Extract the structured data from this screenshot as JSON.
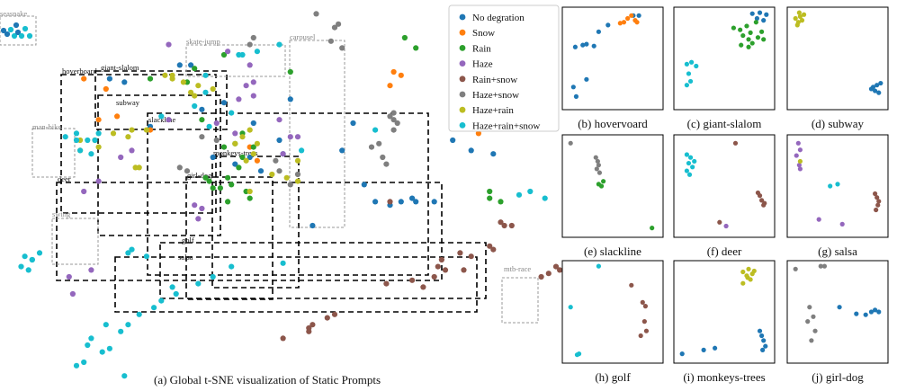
{
  "categories": [
    {
      "name": "No degration",
      "color": "#1f77b4"
    },
    {
      "name": "Snow",
      "color": "#ff7f0e"
    },
    {
      "name": "Rain",
      "color": "#2ca02c"
    },
    {
      "name": "Haze",
      "color": "#9467bd"
    },
    {
      "name": "Rain+snow",
      "color": "#8c564b"
    },
    {
      "name": "Haze+snow",
      "color": "#7f7f7f"
    },
    {
      "name": "Haze+rain",
      "color": "#bcbd22"
    },
    {
      "name": "Haze+rain+snow",
      "color": "#17becf"
    }
  ],
  "main": {
    "caption": "(a) Global t-SNE visualization of Static Prompts",
    "black_boxes": [
      "hoverboard",
      "giant-slalom",
      "subway",
      "slackline",
      "monkeys-trees",
      "girl-dog",
      "deer",
      "golf",
      "salsa"
    ],
    "gray_boxes": [
      "seasnake",
      "skate-jump",
      "carousel",
      "man-bike",
      "swing",
      "mtb-race"
    ]
  },
  "chart_data": [
    {
      "type": "scatter",
      "title": "(a) Global t-SNE visualization of Static Prompts",
      "series": [
        {
          "name": "No degration",
          "x": [
            5,
            -3,
            -19,
            -22,
            -7,
            -13,
            -37,
            -41,
            -30,
            -16,
            -10,
            -2,
            6,
            0,
            8,
            14,
            25,
            28,
            31,
            22,
            35,
            38,
            42,
            47,
            41,
            52,
            57,
            58,
            63
          ],
          "y": [
            30,
            25,
            52,
            52,
            23,
            25,
            47,
            48,
            34,
            39,
            41,
            35,
            26,
            21,
            42,
            5,
            35,
            17,
            12,
            27,
            11,
            12,
            12,
            12,
            13,
            30,
            27,
            35,
            26
          ]
        },
        {
          "name": "Snow",
          "x": [
            -39,
            -44,
            -48,
            -42,
            -30,
            -1,
            -3,
            35,
            36,
            38,
            55,
            55,
            58,
            59
          ],
          "y": [
            37,
            36,
            48,
            45,
            33,
            24,
            28,
            46,
            50,
            49,
            36,
            41,
            40,
            32
          ]
        },
        {
          "name": "Rain",
          "x": [
            -30,
            -11,
            -13,
            -14,
            -15,
            -4,
            -3,
            -9,
            -8,
            -9,
            -6,
            -10,
            -5,
            -2,
            -7,
            -5,
            -10,
            -20,
            -18,
            -16,
            8,
            39,
            42,
            62,
            62,
            65
          ],
          "y": [
            48,
            16,
            16,
            18,
            19,
            15,
            13,
            12,
            17,
            19,
            22,
            28,
            25,
            28,
            29,
            32,
            55,
            47,
            51,
            36,
            50,
            60,
            57,
            13,
            15,
            12
          ]
        },
        {
          "name": "Haze",
          "x": [
            -25,
            -9,
            -3,
            -2,
            -6,
            -7,
            -2,
            -4,
            8,
            10,
            5,
            6,
            -12,
            -25,
            -35,
            -38,
            -44,
            -48,
            -51,
            -52,
            -46,
            -16,
            -18,
            -17
          ],
          "y": [
            58,
            56,
            52,
            47,
            42,
            32,
            43,
            46,
            31,
            31,
            36,
            26,
            35,
            36,
            27,
            25,
            18,
            15,
            -15,
            -10,
            -8,
            10,
            11,
            7
          ]
        },
        {
          "name": "Rain+snow",
          "x": [
            6,
            13,
            13,
            14,
            18,
            20,
            34,
            35,
            41,
            44,
            47,
            48,
            49,
            50,
            54,
            55,
            57,
            62,
            63,
            65,
            66,
            68,
            76,
            78,
            80,
            81
          ],
          "y": [
            -28,
            -26,
            -25,
            -24,
            -22,
            -21,
            -12,
            12,
            -11,
            -13,
            -10,
            -7,
            -5,
            -8,
            -3,
            -8,
            -4,
            -1,
            -2,
            6,
            5,
            5,
            -10,
            -9,
            -7,
            -8
          ]
        },
        {
          "name": "Haze+snow",
          "x": [
            -3,
            -2,
            -3,
            15,
            20,
            21,
            19,
            22,
            35,
            36,
            36,
            37,
            36,
            5,
            4,
            10,
            8,
            -12,
            -16,
            -20,
            -22,
            30,
            32,
            33,
            34
          ],
          "y": [
            72,
            60,
            58,
            67,
            63,
            64,
            59,
            57,
            37,
            36,
            33,
            35,
            38,
            21,
            24,
            20,
            17,
            30,
            31,
            21,
            22,
            28,
            29,
            25,
            23
          ]
        },
        {
          "name": "Haze+rain",
          "x": [
            -26,
            -24,
            -21,
            -17,
            -13,
            -19,
            -18,
            -7,
            -5,
            -3,
            -1,
            -2,
            -4,
            -3,
            3,
            7,
            10,
            10,
            -24,
            -31,
            -35,
            -40,
            -44,
            -49,
            -45,
            -49,
            -34,
            -33,
            -36
          ],
          "y": [
            49,
            49,
            47,
            46,
            45,
            44,
            43,
            29,
            31,
            33,
            29,
            26,
            24,
            15,
            20,
            19,
            18,
            24,
            48,
            33,
            33,
            32,
            28,
            27,
            30,
            30,
            22,
            22,
            31
          ]
        },
        {
          "name": "Haze+rain+snow",
          "x": [
            -6,
            -5,
            -1,
            5,
            -15,
            -15,
            -8,
            -14,
            -18,
            -27,
            -44,
            -47,
            -50,
            -53,
            -45,
            -50,
            -49,
            -46,
            -60,
            -62,
            -63,
            -65,
            -62,
            -64,
            -36,
            -35,
            -31,
            6,
            -8,
            -13,
            -17,
            -24,
            -23,
            -27,
            -29,
            -33,
            -36,
            -38,
            -46,
            -42,
            -47,
            -43,
            -41,
            -48,
            -50,
            -37,
            70,
            73,
            77,
            31,
            11
          ],
          "y": [
            55,
            55,
            56,
            58,
            49,
            44,
            38,
            34,
            40,
            37,
            32,
            30,
            30,
            31,
            30,
            32,
            27,
            26,
            -3,
            -5,
            -8,
            -7,
            -5,
            -4,
            -3,
            -2,
            -4,
            -6,
            -7,
            -10,
            -12,
            -13,
            -15,
            -17,
            -19,
            -21,
            -24,
            -26,
            -28,
            -24,
            -30,
            -32,
            -31,
            -35,
            -36,
            -39,
            14,
            15,
            13,
            33,
            27
          ]
        }
      ]
    },
    {
      "type": "scatter",
      "title": "(b) hovervoard",
      "series": [
        {
          "name": "No degration",
          "x": [
            0.1,
            0.18,
            0.22,
            0.3,
            0.08,
            0.11,
            0.22,
            0.35,
            0.45,
            0.72,
            0.78
          ],
          "y": [
            0.62,
            0.64,
            0.65,
            0.63,
            0.2,
            0.1,
            0.28,
            0.78,
            0.85,
            0.95,
            0.95
          ]
        },
        {
          "name": "Snow",
          "x": [
            0.58,
            0.62,
            0.66,
            0.7,
            0.74,
            0.76
          ],
          "y": [
            0.87,
            0.88,
            0.92,
            0.95,
            0.9,
            0.88
          ]
        }
      ]
    },
    {
      "type": "scatter",
      "title": "(c) giant-slalom",
      "series": [
        {
          "name": "No degration",
          "x": [
            0.8,
            0.88,
            0.95,
            0.92,
            0.85
          ],
          "y": [
            0.97,
            0.98,
            0.96,
            0.9,
            0.92
          ]
        },
        {
          "name": "Rain",
          "x": [
            0.6,
            0.67,
            0.74,
            0.7,
            0.76,
            0.8,
            0.86,
            0.9,
            0.84,
            0.76,
            0.68,
            0.78,
            0.92
          ],
          "y": [
            0.82,
            0.8,
            0.84,
            0.74,
            0.7,
            0.66,
            0.72,
            0.78,
            0.88,
            0.62,
            0.64,
            0.77,
            0.7
          ]
        },
        {
          "name": "Haze+rain+snow",
          "x": [
            0.1,
            0.15,
            0.2,
            0.12,
            0.14,
            0.1
          ],
          "y": [
            0.44,
            0.46,
            0.42,
            0.34,
            0.26,
            0.22
          ]
        }
      ]
    },
    {
      "type": "scatter",
      "title": "(d) subway",
      "series": [
        {
          "name": "Haze+rain",
          "x": [
            0.05,
            0.08,
            0.12,
            0.1,
            0.14,
            0.07,
            0.09
          ],
          "y": [
            0.92,
            0.88,
            0.9,
            0.94,
            0.96,
            0.85,
            0.98
          ]
        },
        {
          "name": "No degration",
          "x": [
            0.86,
            0.9,
            0.94,
            0.92,
            0.96,
            0.88
          ],
          "y": [
            0.18,
            0.16,
            0.14,
            0.22,
            0.24,
            0.2
          ]
        }
      ]
    },
    {
      "type": "scatter",
      "title": "(e) slackline",
      "series": [
        {
          "name": "Haze+snow",
          "x": [
            0.05,
            0.32,
            0.34,
            0.35,
            0.33,
            0.36
          ],
          "y": [
            0.95,
            0.8,
            0.76,
            0.72,
            0.68,
            0.64
          ]
        },
        {
          "name": "Rain",
          "x": [
            0.35,
            0.38,
            0.4,
            0.92
          ],
          "y": [
            0.52,
            0.5,
            0.55,
            0.06
          ]
        }
      ]
    },
    {
      "type": "scatter",
      "title": "(f) deer",
      "series": [
        {
          "name": "Haze+rain+snow",
          "x": [
            0.1,
            0.14,
            0.12,
            0.16,
            0.1,
            0.18,
            0.13
          ],
          "y": [
            0.83,
            0.8,
            0.74,
            0.7,
            0.66,
            0.76,
            0.62
          ]
        },
        {
          "name": "Rain+snow",
          "x": [
            0.62,
            0.86,
            0.88,
            0.9,
            0.92,
            0.93,
            0.45
          ],
          "y": [
            0.95,
            0.43,
            0.4,
            0.35,
            0.3,
            0.32,
            0.12
          ]
        },
        {
          "name": "Haze",
          "x": [
            0.52
          ],
          "y": [
            0.08
          ]
        }
      ]
    },
    {
      "type": "scatter",
      "title": "(g) salsa",
      "series": [
        {
          "name": "Haze",
          "x": [
            0.08,
            0.1,
            0.06,
            0.09,
            0.1,
            0.3,
            0.55
          ],
          "y": [
            0.95,
            0.88,
            0.82,
            0.72,
            0.68,
            0.15,
            0.1
          ]
        },
        {
          "name": "Haze+rain",
          "x": [
            0.1
          ],
          "y": [
            0.76
          ]
        },
        {
          "name": "Haze+rain+snow",
          "x": [
            0.42,
            0.5
          ],
          "y": [
            0.5,
            0.52
          ]
        },
        {
          "name": "Rain+snow",
          "x": [
            0.9,
            0.92,
            0.94,
            0.93,
            0.91
          ],
          "y": [
            0.42,
            0.38,
            0.34,
            0.3,
            0.25
          ]
        }
      ]
    },
    {
      "type": "scatter",
      "title": "(h) golf",
      "series": [
        {
          "name": "Haze+rain+snow",
          "x": [
            0.35,
            0.05,
            0.12,
            0.14
          ],
          "y": [
            0.98,
            0.55,
            0.05,
            0.06
          ]
        },
        {
          "name": "Rain+snow",
          "x": [
            0.7,
            0.82,
            0.85,
            0.84,
            0.86,
            0.8
          ],
          "y": [
            0.78,
            0.6,
            0.56,
            0.4,
            0.3,
            0.25
          ]
        }
      ]
    },
    {
      "type": "scatter",
      "title": "(i) monkeys-trees",
      "series": [
        {
          "name": "Haze+rain",
          "x": [
            0.7,
            0.76,
            0.8,
            0.74,
            0.78,
            0.7,
            0.75,
            0.82
          ],
          "y": [
            0.92,
            0.95,
            0.9,
            0.88,
            0.84,
            0.8,
            0.86,
            0.93
          ]
        },
        {
          "name": "No degration",
          "x": [
            0.05,
            0.28,
            0.4,
            0.88,
            0.9,
            0.92,
            0.94,
            0.91
          ],
          "y": [
            0.06,
            0.1,
            0.12,
            0.3,
            0.25,
            0.2,
            0.14,
            0.1
          ]
        }
      ]
    },
    {
      "type": "scatter",
      "title": "(j) girl-dog",
      "series": [
        {
          "name": "Haze+snow",
          "x": [
            0.05,
            0.32,
            0.36,
            0.2,
            0.24,
            0.26,
            0.22,
            0.18
          ],
          "y": [
            0.95,
            0.98,
            0.98,
            0.55,
            0.45,
            0.3,
            0.2,
            0.4
          ]
        },
        {
          "name": "No degration",
          "x": [
            0.52,
            0.7,
            0.86,
            0.9,
            0.94,
            0.8
          ],
          "y": [
            0.55,
            0.48,
            0.5,
            0.52,
            0.5,
            0.47
          ]
        }
      ]
    }
  ]
}
